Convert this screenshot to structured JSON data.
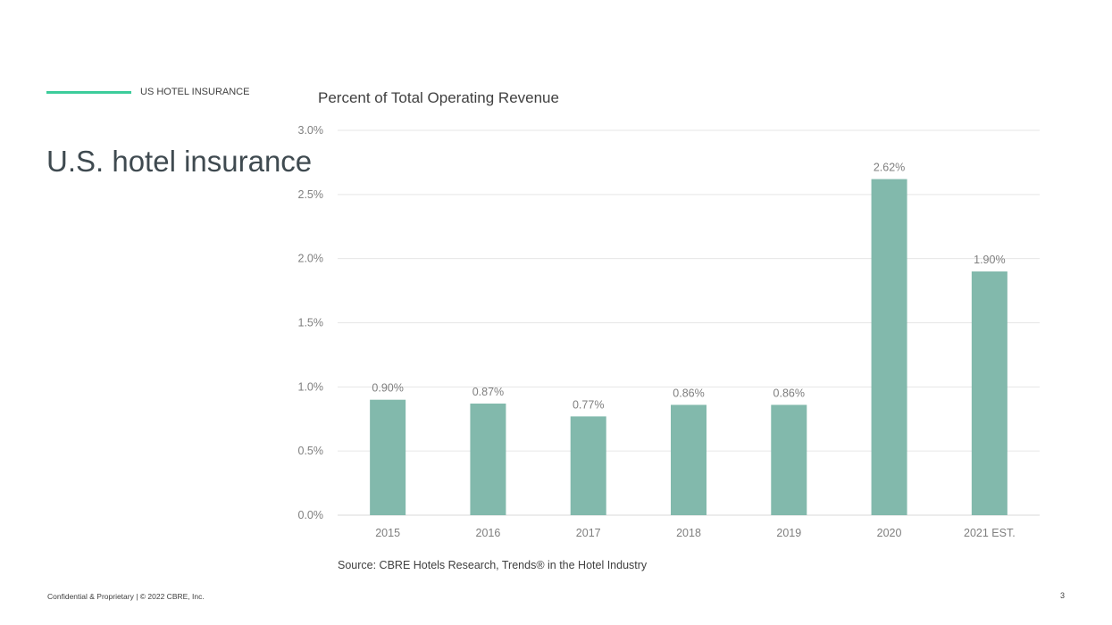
{
  "header": {
    "section_label": "US HOTEL INSURANCE",
    "title": "U.S. hotel insurance"
  },
  "footer": {
    "confidential": "Confidential & Proprietary | © 2022 CBRE, Inc.",
    "page_number": "3"
  },
  "colors": {
    "accent": "#3dcc9b",
    "bar": "#82b9ac"
  },
  "chart_data": {
    "type": "bar",
    "title": "Percent of Total Operating Revenue",
    "categories": [
      "2015",
      "2016",
      "2017",
      "2018",
      "2019",
      "2020",
      "2021 EST."
    ],
    "values": [
      0.9,
      0.87,
      0.77,
      0.86,
      0.86,
      2.62,
      1.9
    ],
    "data_labels": [
      "0.90%",
      "0.87%",
      "0.77%",
      "0.86%",
      "0.86%",
      "2.62%",
      "1.90%"
    ],
    "yticks": [
      "0.0%",
      "0.5%",
      "1.0%",
      "1.5%",
      "2.0%",
      "2.5%",
      "3.0%"
    ],
    "ylim": [
      0,
      3.0
    ],
    "grid": true,
    "source": "Source: CBRE Hotels Research, Trends® in the Hotel Industry"
  }
}
